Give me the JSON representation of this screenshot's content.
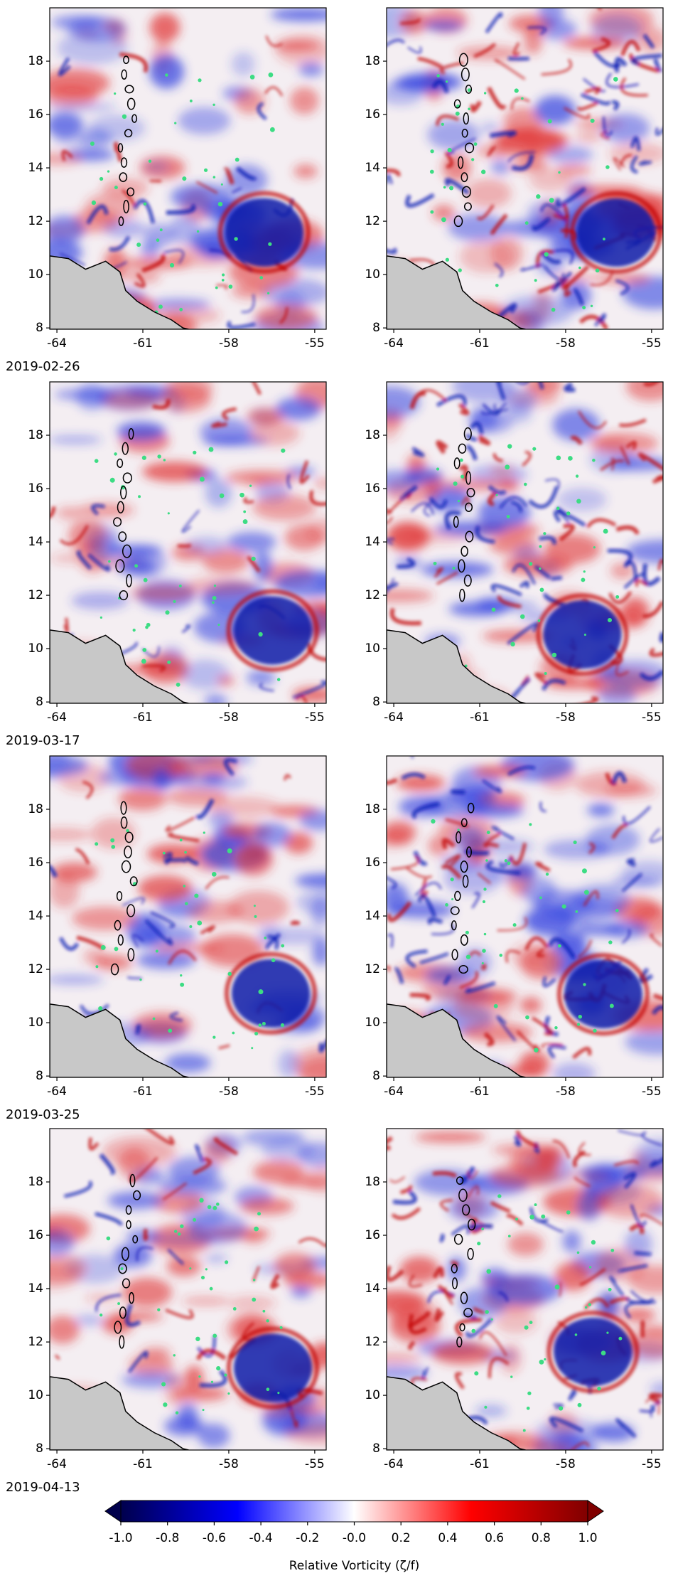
{
  "chart_data": [
    {
      "type": "map",
      "xlim": [
        -64.25,
        -54.6
      ],
      "ylim": [
        7.95,
        20.0
      ],
      "xticks": [
        -64,
        -61,
        -58,
        -55
      ],
      "yticks": [
        8,
        10,
        12,
        14,
        16,
        18
      ]
    },
    {
      "type": "map",
      "xlim": [
        -64.25,
        -54.6
      ],
      "ylim": [
        7.95,
        20.0
      ],
      "xticks": [
        -64,
        -61,
        -58,
        -55
      ],
      "yticks": [
        8,
        10,
        12,
        14,
        16,
        18
      ]
    },
    {
      "type": "map",
      "xlim": [
        -64.25,
        -54.6
      ],
      "ylim": [
        7.95,
        20.0
      ],
      "xticks": [
        -64,
        -61,
        -58,
        -55
      ],
      "yticks": [
        8,
        10,
        12,
        14,
        16,
        18
      ]
    },
    {
      "type": "map",
      "xlim": [
        -64.25,
        -54.6
      ],
      "ylim": [
        7.95,
        20.0
      ],
      "xticks": [
        -64,
        -61,
        -58,
        -55
      ],
      "yticks": [
        8,
        10,
        12,
        14,
        16,
        18
      ]
    },
    {
      "type": "map",
      "xlim": [
        -64.25,
        -54.6
      ],
      "ylim": [
        7.95,
        20.0
      ],
      "xticks": [
        -64,
        -61,
        -58,
        -55
      ],
      "yticks": [
        8,
        10,
        12,
        14,
        16,
        18
      ]
    },
    {
      "type": "map",
      "xlim": [
        -64.25,
        -54.6
      ],
      "ylim": [
        7.95,
        20.0
      ],
      "xticks": [
        -64,
        -61,
        -58,
        -55
      ],
      "yticks": [
        8,
        10,
        12,
        14,
        16,
        18
      ]
    },
    {
      "type": "map",
      "xlim": [
        -64.25,
        -54.6
      ],
      "ylim": [
        7.95,
        20.0
      ],
      "xticks": [
        -64,
        -61,
        -58,
        -55
      ],
      "yticks": [
        8,
        10,
        12,
        14,
        16,
        18
      ]
    },
    {
      "type": "map",
      "xlim": [
        -64.25,
        -54.6
      ],
      "ylim": [
        7.95,
        20.0
      ],
      "xticks": [
        -64,
        -61,
        -58,
        -55
      ],
      "yticks": [
        8,
        10,
        12,
        14,
        16,
        18
      ]
    }
  ],
  "dates": [
    "2019-02-26",
    "2019-03-17",
    "2019-03-25",
    "2019-04-13"
  ],
  "colorbar": {
    "label": "Relative Vorticity (ζ/f)",
    "lim": [
      -1,
      1
    ],
    "colors": [
      "#00004c",
      "#0000ff",
      "#ffffff",
      "#ff0000",
      "#800000"
    ],
    "ticks": [
      {
        "value": -1,
        "label": "-1.0"
      },
      -0.8,
      -0.6,
      -0.4,
      -0.2,
      {
        "value": 0,
        "label": "-0.0"
      },
      0.2,
      0.4,
      0.6,
      0.8,
      {
        "value": 1,
        "label": "1.0"
      }
    ]
  }
}
